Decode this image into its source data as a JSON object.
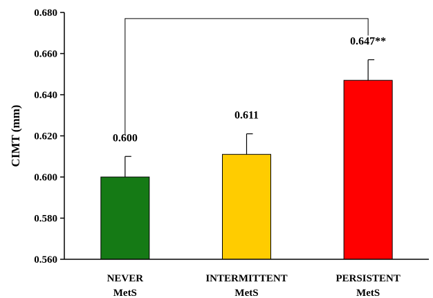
{
  "chart_data": {
    "type": "bar",
    "ylabel": "CIMT (mm)",
    "xlabel": "",
    "ylim": [
      0.56,
      0.68
    ],
    "yticks": [
      "0.560",
      "0.580",
      "0.600",
      "0.620",
      "0.640",
      "0.660",
      "0.680"
    ],
    "grid": false,
    "categories": [
      {
        "line1": "NEVER",
        "line2": "MetS"
      },
      {
        "line1": "INTERMITTENT",
        "line2": "MetS"
      },
      {
        "line1": "PERSISTENT",
        "line2": "MetS"
      }
    ],
    "values": [
      0.6,
      0.611,
      0.647
    ],
    "error_upper": [
      0.01,
      0.01,
      0.01
    ],
    "data_labels": [
      "0.600",
      "0.611",
      "0.647**"
    ],
    "colors": [
      "#157A15",
      "#FFCC00",
      "#FF0000"
    ],
    "significance_bracket": {
      "from_category": 0,
      "to_category": 2,
      "y": 0.677
    }
  }
}
